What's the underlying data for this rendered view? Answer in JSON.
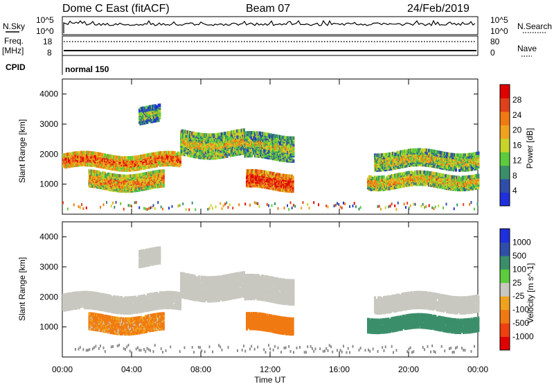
{
  "header": {
    "station": "Dome C East (fitACF)",
    "beam": "Beam 07",
    "date": "24/Feb/2019"
  },
  "summary": {
    "nsky_label": "N.Sky",
    "nsky_ticks": [
      "10^5",
      "10^0"
    ],
    "nsearch_label": "N.Search",
    "nsearch_ticks": [
      "10^5",
      "10^0"
    ],
    "freq_label": "Freq.",
    "freq_unit": "[MHz]",
    "freq_ticks": [
      "18",
      "8"
    ],
    "nave_label": "Nave",
    "nave_ticks": [
      "80",
      "0"
    ],
    "cpid_label": "CPID",
    "cpid_value": "normal 150"
  },
  "colors": {
    "power_scale": [
      "#1f2fdc",
      "#2f4ea8",
      "#3a8f6a",
      "#5ccc3c",
      "#c8d42a",
      "#f0a21e",
      "#f07a12",
      "#e0401a",
      "#e00000"
    ],
    "velocity_scale": [
      "#e00000",
      "#f04010",
      "#f07a12",
      "#f0a21e",
      "#c8c8c0",
      "#5ccc3c",
      "#3a8f6a",
      "#2f4ea8",
      "#1f2fdc"
    ],
    "ground": "#8a8a8a"
  },
  "chart_data": [
    {
      "type": "heatmap",
      "panel": "power",
      "xlabel": "",
      "ylabel": "Slant Range [km]",
      "x_range_hours": [
        0,
        24
      ],
      "ylim": [
        0,
        4500
      ],
      "yticks": [
        "1000",
        "2000",
        "3000",
        "4000"
      ],
      "colorbar_label": "Power [dB]",
      "colorbar_ticks": [
        "4",
        "8",
        "12",
        "16",
        "20",
        "24",
        "28"
      ],
      "colorbar_range": [
        0,
        32
      ],
      "bands": [
        {
          "t_start": 0.0,
          "t_end": 6.8,
          "r_low": 1500,
          "r_high": 1950,
          "value": 18
        },
        {
          "t_start": 6.8,
          "t_end": 10.5,
          "r_low": 1900,
          "r_high": 2700,
          "value": 12
        },
        {
          "t_start": 10.5,
          "t_end": 13.3,
          "r_low": 1800,
          "r_high": 2600,
          "value": 10
        },
        {
          "t_start": 10.6,
          "t_end": 13.3,
          "r_low": 800,
          "r_high": 1300,
          "value": 22
        },
        {
          "t_start": 1.5,
          "t_end": 5.8,
          "r_low": 800,
          "r_high": 1300,
          "value": 15
        },
        {
          "t_start": 4.4,
          "t_end": 5.6,
          "r_low": 3000,
          "r_high": 3500,
          "value": 6
        },
        {
          "t_start": 18.0,
          "t_end": 24.0,
          "r_low": 1500,
          "r_high": 2000,
          "value": 10
        },
        {
          "t_start": 17.6,
          "t_end": 24.0,
          "r_low": 850,
          "r_high": 1300,
          "value": 13
        }
      ]
    },
    {
      "type": "heatmap",
      "panel": "velocity",
      "xlabel": "Time UT",
      "ylabel": "Slant Range [km]",
      "x_range_hours": [
        0,
        24
      ],
      "xticks": [
        "00:00",
        "04:00",
        "08:00",
        "12:00",
        "16:00",
        "20:00",
        "00:00"
      ],
      "ylim": [
        0,
        4500
      ],
      "yticks": [
        "1000",
        "2000",
        "3000",
        "4000"
      ],
      "colorbar_label": "Velocity [m s^-1]",
      "colorbar_ticks": [
        "1000",
        "500",
        "100",
        "25",
        "-25",
        "-100",
        "-500",
        "-1000"
      ],
      "bands": [
        {
          "t_start": 0.0,
          "t_end": 6.8,
          "r_low": 1500,
          "r_high": 2000,
          "value": 0
        },
        {
          "t_start": 6.8,
          "t_end": 10.5,
          "r_low": 1900,
          "r_high": 2700,
          "value": 0
        },
        {
          "t_start": 10.5,
          "t_end": 13.3,
          "r_low": 1800,
          "r_high": 2600,
          "value": 0
        },
        {
          "t_start": 10.6,
          "t_end": 13.3,
          "r_low": 800,
          "r_high": 1300,
          "value": -250
        },
        {
          "t_start": 1.5,
          "t_end": 5.8,
          "r_low": 800,
          "r_high": 1300,
          "value": -150
        },
        {
          "t_start": 4.4,
          "t_end": 5.6,
          "r_low": 3000,
          "r_high": 3500,
          "value": 0
        },
        {
          "t_start": 18.0,
          "t_end": 24.0,
          "r_low": 1500,
          "r_high": 2000,
          "value": 0
        },
        {
          "t_start": 17.6,
          "t_end": 24.0,
          "r_low": 850,
          "r_high": 1300,
          "value": 300
        }
      ]
    }
  ]
}
